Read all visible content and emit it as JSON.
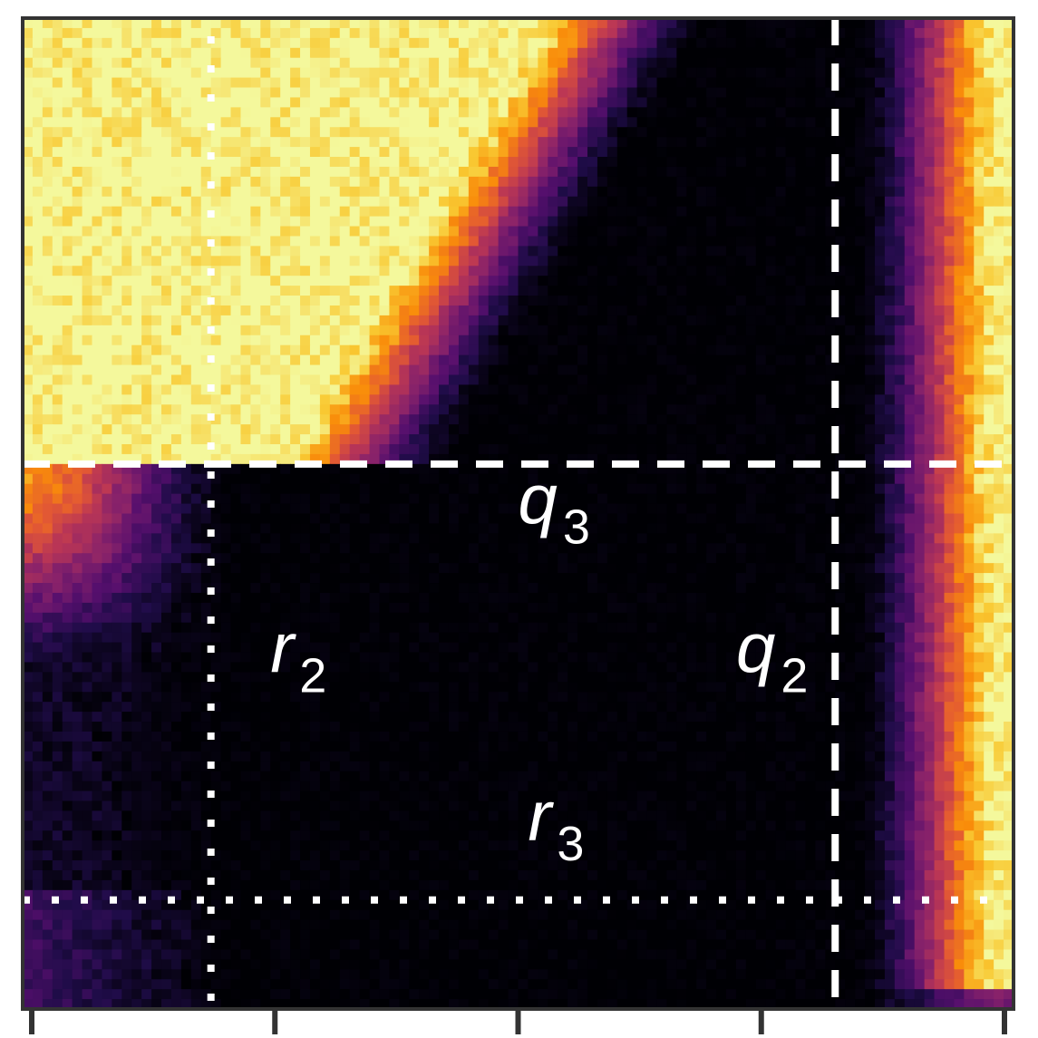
{
  "chart_data": {
    "type": "heatmap",
    "title": "",
    "xlabel": "",
    "ylabel": "",
    "colormap": "inferno",
    "grid": false,
    "legend": "none",
    "xlim": [
      0,
      1
    ],
    "ylim": [
      0,
      1
    ],
    "x_tick_count": 5,
    "dashed_lines": {
      "vertical_x": 0.82,
      "horizontal_y": 0.55,
      "color": "#ffffff"
    },
    "dotted_lines": {
      "vertical_x": 0.19,
      "horizontal_y": 0.11,
      "color": "#ffffff"
    },
    "region_labels": [
      {
        "name": "q3",
        "base": "q",
        "sub": "3",
        "x": 0.5,
        "y": 0.49
      },
      {
        "name": "r2",
        "base": "r",
        "sub": "2",
        "x": 0.25,
        "y": 0.34
      },
      {
        "name": "q2",
        "base": "q",
        "sub": "2",
        "x": 0.72,
        "y": 0.34
      },
      {
        "name": "r3",
        "base": "r",
        "sub": "3",
        "x": 0.51,
        "y": 0.17
      }
    ],
    "description_of_regions": {
      "top_left": "high",
      "right_band": "high",
      "center": "low"
    }
  }
}
